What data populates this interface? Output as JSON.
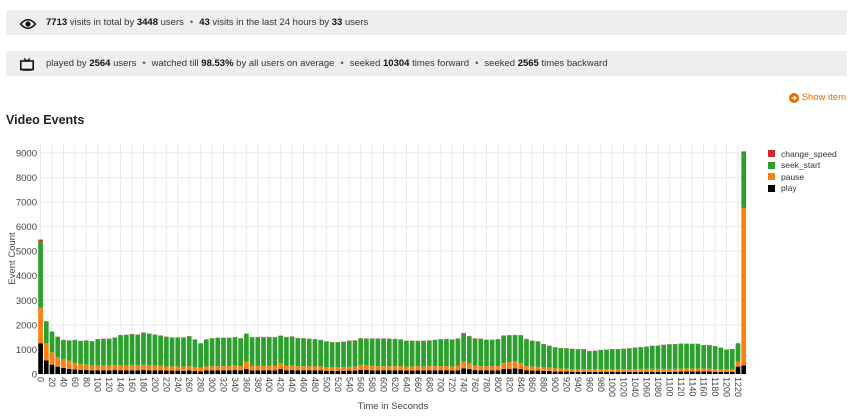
{
  "visits": {
    "total_visits": "7713",
    "t1": " visits in total by ",
    "total_users": "3448",
    "t2": " users",
    "recent_visits": "43",
    "t3": " visits in the last 24 hours by ",
    "recent_users": "33",
    "t4": " users"
  },
  "playback": {
    "t1": "played by ",
    "played_users": "2564",
    "t2": " users",
    "t3": "watched till ",
    "watched_pct": "98.53%",
    "t4": " by all users on average",
    "t5": "seeked ",
    "seek_forward": "10304",
    "t6": " times forward",
    "t7": "seeked ",
    "seek_backward": "2565",
    "t8": " times backward",
    "dot": "•"
  },
  "show_item_label": "Show item",
  "section_title": "Video Events",
  "colors": {
    "play": "#000000",
    "pause": "#ff7f0e",
    "seek_start": "#2ca02c",
    "change_speed": "#d62728",
    "accent": "#e86a00"
  },
  "chart_data": {
    "type": "bar",
    "stacked": true,
    "xlabel": "Time in Seconds",
    "ylabel": "Event Count",
    "ylim": [
      0,
      9400
    ],
    "yticks": [
      0,
      1000,
      2000,
      3000,
      4000,
      5000,
      6000,
      7000,
      8000,
      9000
    ],
    "xlim": [
      -1,
      1234
    ],
    "xticks": [
      0,
      20,
      40,
      60,
      80,
      100,
      120,
      140,
      160,
      180,
      200,
      220,
      240,
      260,
      280,
      300,
      320,
      340,
      360,
      380,
      400,
      420,
      440,
      460,
      480,
      500,
      520,
      540,
      560,
      580,
      600,
      620,
      640,
      660,
      680,
      700,
      720,
      740,
      760,
      780,
      800,
      820,
      840,
      860,
      880,
      900,
      920,
      940,
      960,
      980,
      1000,
      1020,
      1040,
      1060,
      1080,
      1100,
      1120,
      1140,
      1160,
      1180,
      1200,
      1220
    ],
    "grid": true,
    "legend_position": "top-right",
    "bar_step": 10,
    "x": [
      0,
      10,
      20,
      30,
      40,
      50,
      60,
      70,
      80,
      90,
      100,
      110,
      120,
      130,
      140,
      150,
      160,
      170,
      180,
      190,
      200,
      210,
      220,
      230,
      240,
      250,
      260,
      270,
      280,
      290,
      300,
      310,
      320,
      330,
      340,
      350,
      360,
      370,
      380,
      390,
      400,
      410,
      420,
      430,
      440,
      450,
      460,
      470,
      480,
      490,
      500,
      510,
      520,
      530,
      540,
      550,
      560,
      570,
      580,
      590,
      600,
      610,
      620,
      630,
      640,
      650,
      660,
      670,
      680,
      690,
      700,
      710,
      720,
      730,
      740,
      750,
      760,
      770,
      780,
      790,
      800,
      810,
      820,
      830,
      840,
      850,
      860,
      870,
      880,
      890,
      900,
      910,
      920,
      930,
      940,
      950,
      960,
      970,
      980,
      990,
      1000,
      1010,
      1020,
      1030,
      1040,
      1050,
      1060,
      1070,
      1080,
      1090,
      1100,
      1110,
      1120,
      1130,
      1140,
      1150,
      1160,
      1170,
      1180,
      1190,
      1200,
      1210,
      1220,
      1230
    ],
    "series": [
      {
        "name": "play",
        "values": [
          1250,
          550,
          380,
          300,
          250,
          210,
          190,
          170,
          160,
          150,
          150,
          150,
          150,
          160,
          150,
          150,
          150,
          150,
          160,
          150,
          150,
          150,
          140,
          140,
          140,
          130,
          150,
          120,
          110,
          150,
          150,
          150,
          150,
          150,
          160,
          150,
          200,
          150,
          150,
          150,
          150,
          150,
          200,
          150,
          160,
          150,
          150,
          150,
          150,
          150,
          130,
          130,
          130,
          130,
          140,
          140,
          170,
          160,
          150,
          150,
          150,
          150,
          150,
          150,
          140,
          140,
          150,
          140,
          150,
          150,
          150,
          150,
          140,
          150,
          230,
          200,
          160,
          150,
          150,
          150,
          150,
          200,
          200,
          230,
          200,
          150,
          140,
          140,
          130,
          120,
          100,
          100,
          100,
          90,
          90,
          90,
          90,
          90,
          90,
          90,
          90,
          90,
          90,
          90,
          90,
          90,
          90,
          90,
          90,
          90,
          90,
          90,
          100,
          100,
          100,
          100,
          100,
          100,
          90,
          90,
          90,
          90,
          300,
          350
        ]
      },
      {
        "name": "pause",
        "values": [
          1450,
          700,
          500,
          380,
          350,
          330,
          250,
          230,
          220,
          200,
          200,
          200,
          200,
          210,
          200,
          200,
          210,
          210,
          220,
          200,
          200,
          190,
          170,
          170,
          170,
          170,
          170,
          160,
          150,
          160,
          170,
          170,
          170,
          180,
          190,
          170,
          300,
          180,
          180,
          180,
          180,
          180,
          250,
          180,
          180,
          170,
          170,
          170,
          160,
          160,
          150,
          150,
          150,
          150,
          150,
          160,
          200,
          190,
          180,
          170,
          170,
          170,
          170,
          170,
          160,
          160,
          170,
          160,
          170,
          170,
          170,
          170,
          160,
          180,
          280,
          220,
          180,
          170,
          170,
          170,
          170,
          240,
          280,
          300,
          250,
          170,
          160,
          150,
          150,
          140,
          130,
          120,
          120,
          110,
          110,
          110,
          110,
          110,
          110,
          110,
          110,
          110,
          110,
          110,
          110,
          120,
          120,
          120,
          120,
          120,
          120,
          120,
          120,
          120,
          120,
          120,
          120,
          120,
          110,
          110,
          110,
          110,
          200,
          6400
        ]
      },
      {
        "name": "seek_start",
        "values": [
          2700,
          880,
          830,
          830,
          780,
          820,
          940,
          940,
          980,
          980,
          1060,
          1080,
          1080,
          1110,
          1230,
          1240,
          1260,
          1240,
          1300,
          1290,
          1250,
          1220,
          1200,
          1170,
          1170,
          1180,
          1210,
          1120,
          980,
          1090,
          1130,
          1150,
          1150,
          1140,
          1140,
          1130,
          1130,
          1160,
          1170,
          1170,
          1170,
          1160,
          1100,
          1170,
          1180,
          1140,
          1130,
          1110,
          1100,
          1070,
          1040,
          1010,
          1010,
          1030,
          1060,
          1060,
          1080,
          1090,
          1110,
          1120,
          1120,
          1110,
          1100,
          1080,
          1050,
          1050,
          1020,
          1050,
          1040,
          1060,
          1090,
          1100,
          1100,
          1110,
          1150,
          1110,
          1100,
          1110,
          1070,
          1070,
          1090,
          1120,
          1090,
          1050,
          1120,
          1100,
          1050,
          1030,
          930,
          880,
          850,
          830,
          820,
          820,
          800,
          800,
          730,
          740,
          770,
          780,
          800,
          800,
          820,
          840,
          870,
          880,
          900,
          930,
          940,
          970,
          990,
          1000,
          1010,
          1010,
          1000,
          1000,
          950,
          950,
          930,
          870,
          790,
          810,
          740,
          2300
        ]
      },
      {
        "name": "change_speed",
        "values": [
          70,
          20,
          15,
          12,
          10,
          10,
          10,
          10,
          10,
          10,
          10,
          10,
          10,
          10,
          10,
          10,
          10,
          10,
          10,
          10,
          10,
          10,
          10,
          10,
          10,
          10,
          10,
          10,
          10,
          10,
          10,
          10,
          10,
          10,
          10,
          10,
          10,
          10,
          10,
          10,
          10,
          10,
          10,
          10,
          10,
          10,
          10,
          10,
          10,
          10,
          10,
          10,
          10,
          10,
          10,
          10,
          10,
          10,
          10,
          10,
          10,
          10,
          10,
          10,
          10,
          10,
          10,
          10,
          10,
          10,
          10,
          10,
          10,
          10,
          10,
          10,
          10,
          10,
          10,
          10,
          10,
          10,
          10,
          10,
          10,
          10,
          10,
          10,
          10,
          10,
          10,
          10,
          10,
          10,
          10,
          10,
          10,
          10,
          10,
          10,
          10,
          10,
          10,
          10,
          10,
          10,
          10,
          10,
          10,
          10,
          10,
          10,
          10,
          10,
          10,
          10,
          10,
          10,
          10,
          10,
          10,
          10,
          10,
          10
        ]
      }
    ]
  }
}
